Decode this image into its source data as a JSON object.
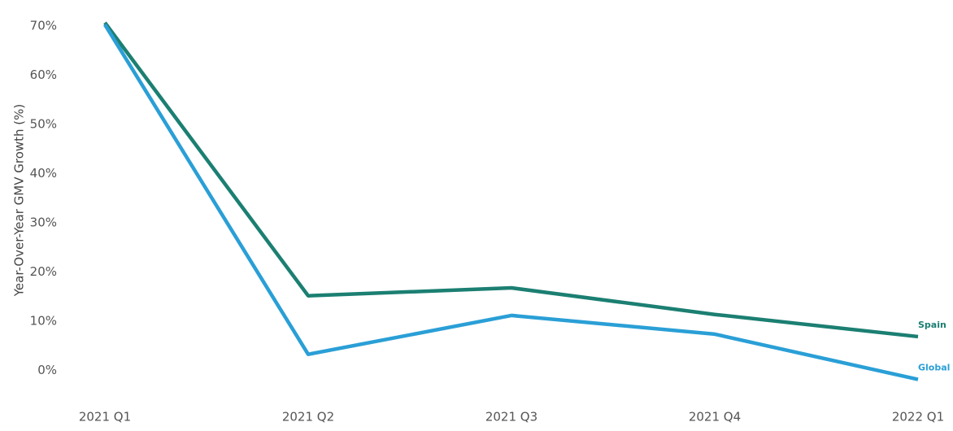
{
  "chart_data": {
    "type": "line",
    "y_label": "Year-Over-Year GMV Growth (%)",
    "categories": [
      "2021 Q1",
      "2021 Q2",
      "2021 Q3",
      "2021 Q4",
      "2022 Q1"
    ],
    "series": [
      {
        "name": "Spain",
        "color": "#1b7f72",
        "values": [
          70.7,
          15.2,
          16.8,
          11.4,
          6.9
        ]
      },
      {
        "name": "Global",
        "color": "#2a9fd6",
        "values": [
          70.3,
          3.3,
          11.2,
          7.4,
          -1.8
        ]
      }
    ],
    "ylim": [
      -6,
      72
    ],
    "yticks": [
      {
        "value": 0,
        "label": "0%"
      },
      {
        "value": 10,
        "label": "10%"
      },
      {
        "value": 20,
        "label": "20%"
      },
      {
        "value": 30,
        "label": "30%"
      },
      {
        "value": 40,
        "label": "40%"
      },
      {
        "value": 50,
        "label": "50%"
      },
      {
        "value": 60,
        "label": "60%"
      },
      {
        "value": 70,
        "label": "70%"
      }
    ]
  }
}
